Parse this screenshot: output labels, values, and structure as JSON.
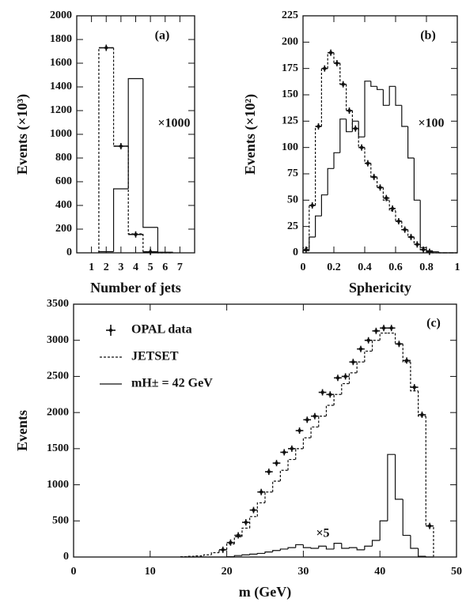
{
  "chart_data": [
    {
      "type": "histogram",
      "xlabel": "Number of jets",
      "ylabel": "Events (×10³)",
      "annotations": [
        "(a)",
        "×1000"
      ],
      "xlim": [
        0,
        8
      ],
      "xticks": [
        1,
        2,
        3,
        4,
        5,
        6,
        7
      ],
      "ylim": [
        0,
        2000
      ],
      "yticks": [
        0,
        200,
        400,
        600,
        800,
        1000,
        1200,
        1400,
        1600,
        1800,
        2000
      ],
      "bins": [
        1.5,
        2.5,
        3.5,
        4.5,
        5.5,
        6.5
      ],
      "series": [
        {
          "dash": true,
          "color": "#111",
          "values": [
            1730,
            900,
            160,
            10,
            0
          ]
        },
        {
          "dash": false,
          "color": "#111",
          "values": [
            10,
            540,
            1470,
            215,
            5
          ]
        }
      ],
      "points": {
        "color": "#111",
        "x": [
          2,
          3,
          4,
          5
        ],
        "values": [
          1730,
          900,
          155,
          8
        ]
      }
    },
    {
      "type": "histogram",
      "xlabel": "Sphericity",
      "ylabel": "Events (×10²)",
      "annotations": [
        "(b)",
        "×100"
      ],
      "xlim": [
        0,
        1
      ],
      "xticks": [
        0,
        0.2,
        0.4,
        0.6,
        0.8,
        1
      ],
      "ylim": [
        0,
        225
      ],
      "yticks": [
        0,
        25,
        50,
        75,
        100,
        125,
        150,
        175,
        200,
        225
      ],
      "bins": [
        0,
        0.04,
        0.08,
        0.12,
        0.16,
        0.2,
        0.24,
        0.28,
        0.32,
        0.36,
        0.4,
        0.44,
        0.48,
        0.52,
        0.56,
        0.6,
        0.64,
        0.68,
        0.72,
        0.76,
        0.8,
        0.84,
        0.88,
        0.92,
        0.96,
        1
      ],
      "series": [
        {
          "dash": true,
          "color": "#111",
          "values": [
            5,
            45,
            120,
            175,
            190,
            180,
            160,
            135,
            118,
            100,
            85,
            72,
            62,
            50,
            40,
            30,
            22,
            15,
            8,
            3,
            1,
            0,
            0,
            0,
            0
          ]
        },
        {
          "dash": false,
          "color": "#111",
          "values": [
            2,
            15,
            35,
            55,
            80,
            95,
            127,
            115,
            125,
            110,
            163,
            158,
            155,
            140,
            158,
            140,
            120,
            90,
            50,
            5,
            2,
            1,
            0,
            0,
            0
          ]
        }
      ],
      "points": {
        "color": "#111",
        "x": [
          0.02,
          0.06,
          0.1,
          0.14,
          0.18,
          0.22,
          0.26,
          0.3,
          0.34,
          0.38,
          0.42,
          0.46,
          0.5,
          0.54,
          0.58,
          0.62,
          0.66,
          0.7,
          0.74,
          0.78,
          0.82
        ],
        "values": [
          3,
          45,
          120,
          175,
          190,
          180,
          160,
          135,
          118,
          100,
          85,
          72,
          62,
          52,
          42,
          30,
          22,
          15,
          8,
          3,
          1
        ]
      }
    },
    {
      "type": "histogram",
      "xlabel": "m (GeV)",
      "ylabel": "Events",
      "annotations": [
        "(c)",
        "×5"
      ],
      "xlim": [
        0,
        50
      ],
      "xticks": [
        0,
        10,
        20,
        30,
        40,
        50
      ],
      "ylim": [
        0,
        3500
      ],
      "yticks": [
        0,
        500,
        1000,
        1500,
        2000,
        2500,
        3000,
        3500
      ],
      "bins": [
        14,
        15,
        16,
        17,
        18,
        19,
        20,
        21,
        22,
        23,
        24,
        25,
        26,
        27,
        28,
        29,
        30,
        31,
        32,
        33,
        34,
        35,
        36,
        37,
        38,
        39,
        40,
        41,
        42,
        43,
        44,
        45,
        46,
        47
      ],
      "series": [
        {
          "name": "JETSET",
          "dash": true,
          "color": "#111",
          "values": [
            5,
            10,
            15,
            30,
            60,
            100,
            180,
            280,
            400,
            560,
            750,
            900,
            1050,
            1200,
            1350,
            1500,
            1650,
            1800,
            1950,
            2100,
            2250,
            2400,
            2550,
            2700,
            2850,
            3000,
            3100,
            3100,
            2950,
            2700,
            2300,
            1950,
            430
          ]
        },
        {
          "name": "mH± = 42 GeV",
          "dash": false,
          "color": "#111",
          "values": [
            0,
            0,
            0,
            0,
            0,
            0,
            5,
            20,
            30,
            40,
            50,
            70,
            90,
            110,
            130,
            170,
            130,
            120,
            150,
            110,
            190,
            120,
            130,
            100,
            150,
            230,
            500,
            1420,
            800,
            300,
            120,
            10,
            0
          ]
        }
      ],
      "points": {
        "name": "OPAL data",
        "color": "#111",
        "x": [
          19.5,
          20.5,
          21.5,
          22.5,
          23.5,
          24.5,
          25.5,
          26.5,
          27.5,
          28.5,
          29.5,
          30.5,
          31.5,
          32.5,
          33.5,
          34.5,
          35.5,
          36.5,
          37.5,
          38.5,
          39.5,
          40.5,
          41.5,
          42.5,
          43.5,
          44.5,
          45.5,
          46.5
        ],
        "values": [
          100,
          200,
          300,
          480,
          650,
          900,
          1180,
          1300,
          1450,
          1500,
          1750,
          1900,
          1950,
          2280,
          2250,
          2480,
          2500,
          2700,
          2880,
          3000,
          3130,
          3170,
          3170,
          2950,
          2720,
          2350,
          1970,
          430
        ]
      }
    }
  ]
}
